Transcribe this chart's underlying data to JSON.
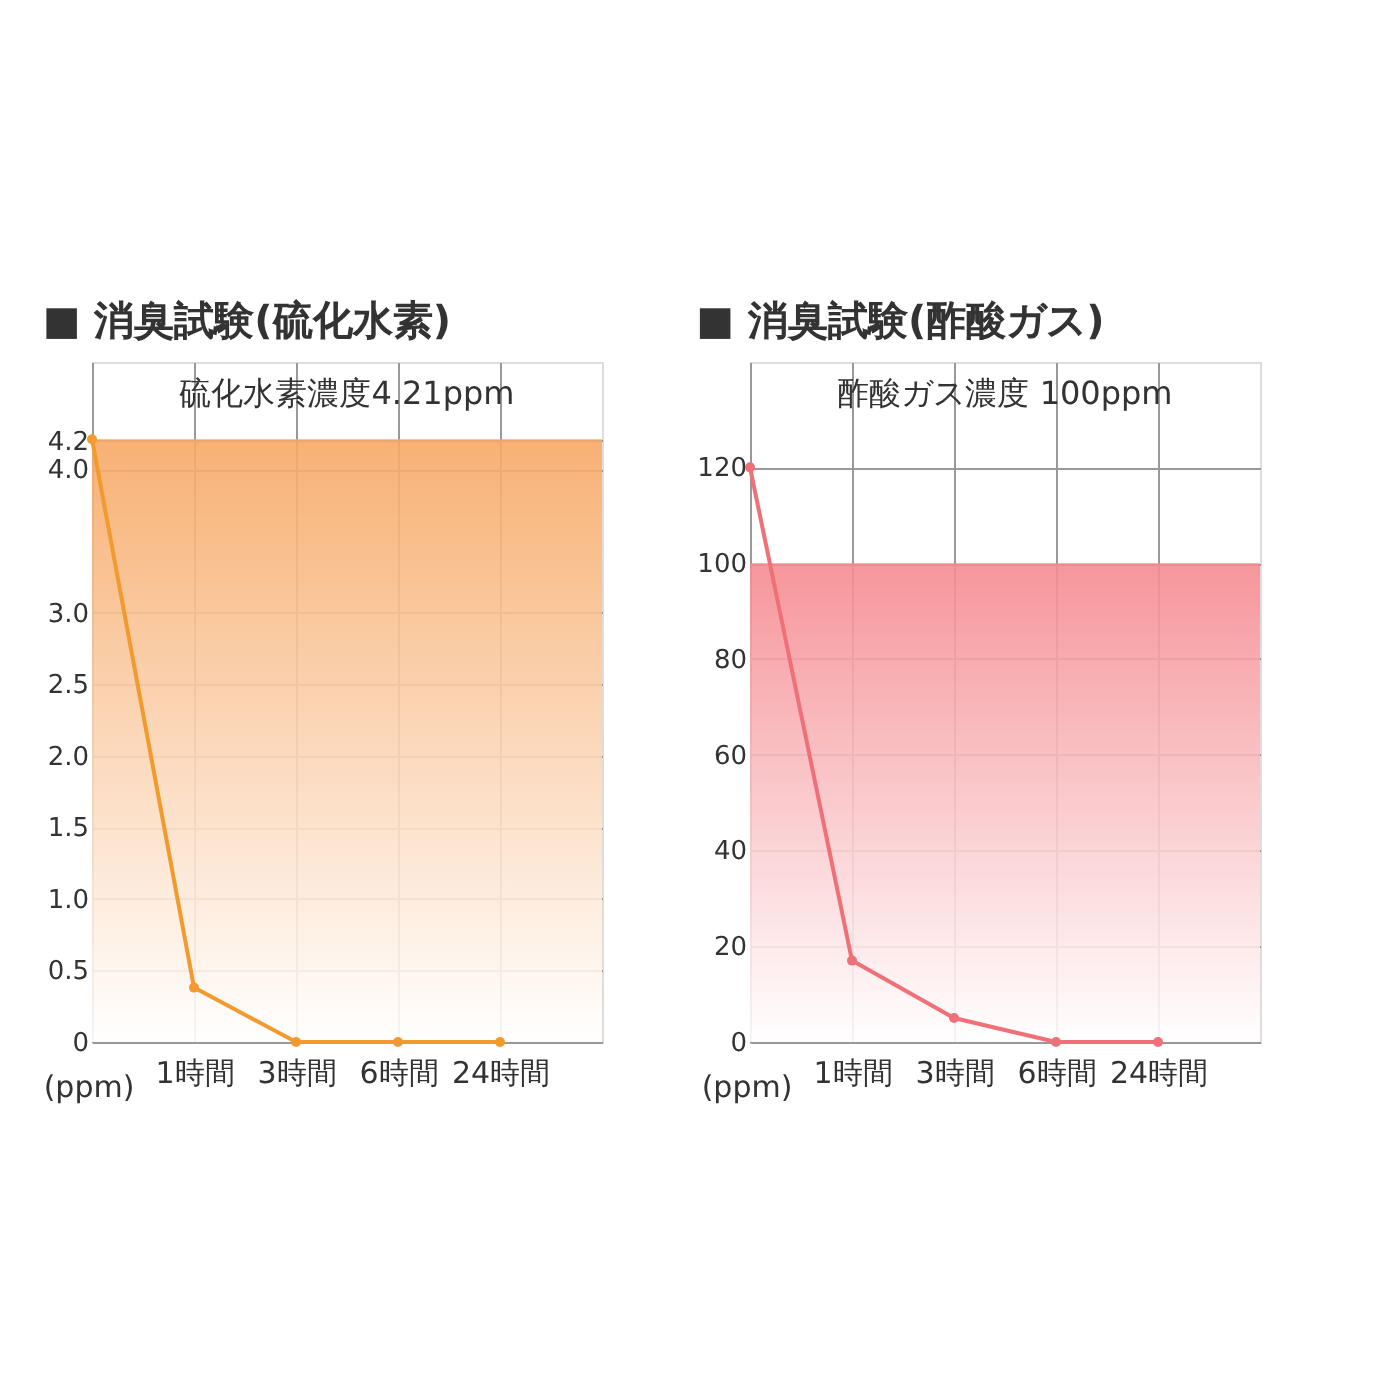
{
  "chart_data": [
    {
      "type": "line",
      "title": "■ 消臭試験(硫化水素)",
      "ylabel": "(ppm)",
      "categories": [
        null,
        "1時間",
        "3時間",
        "6時間",
        "24時間"
      ],
      "series": [
        {
          "color": "#f29a2e",
          "values": [
            4.21,
            0.38,
            0,
            0,
            0
          ]
        }
      ],
      "ylim": [
        0,
        4.75
      ],
      "yticks": [
        0,
        0.5,
        {
          "value": 1,
          "label": "1.0"
        },
        1.5,
        {
          "value": 2,
          "label": "2.0"
        },
        2.5,
        {
          "value": 3,
          "label": "3.0"
        },
        {
          "value": 4,
          "label": "4.0"
        },
        4.2
      ],
      "bands": [
        {
          "axis": "y",
          "from": 0,
          "to": 4.21,
          "color": "#f7a865"
        }
      ],
      "annotations": [
        "硫化水素濃度4.21ppm"
      ],
      "grid": true,
      "marker": "circle"
    },
    {
      "type": "line",
      "title": "■ 消臭試験(酢酸ガス)",
      "ylabel": "(ppm)",
      "categories": [
        null,
        "1時間",
        "3時間",
        "6時間",
        "24時間"
      ],
      "series": [
        {
          "color": "#f07078",
          "values": [
            120,
            17,
            5,
            0,
            0
          ]
        }
      ],
      "ylim": [
        0,
        142
      ],
      "yticks": [
        0,
        20,
        40,
        60,
        80,
        100,
        120
      ],
      "bands": [
        {
          "axis": "y",
          "from": 0,
          "to": 100,
          "color": "#f58a90"
        }
      ],
      "annotations": [
        "酢酸ガス濃度 100ppm"
      ],
      "grid": true,
      "marker": "circle"
    }
  ]
}
